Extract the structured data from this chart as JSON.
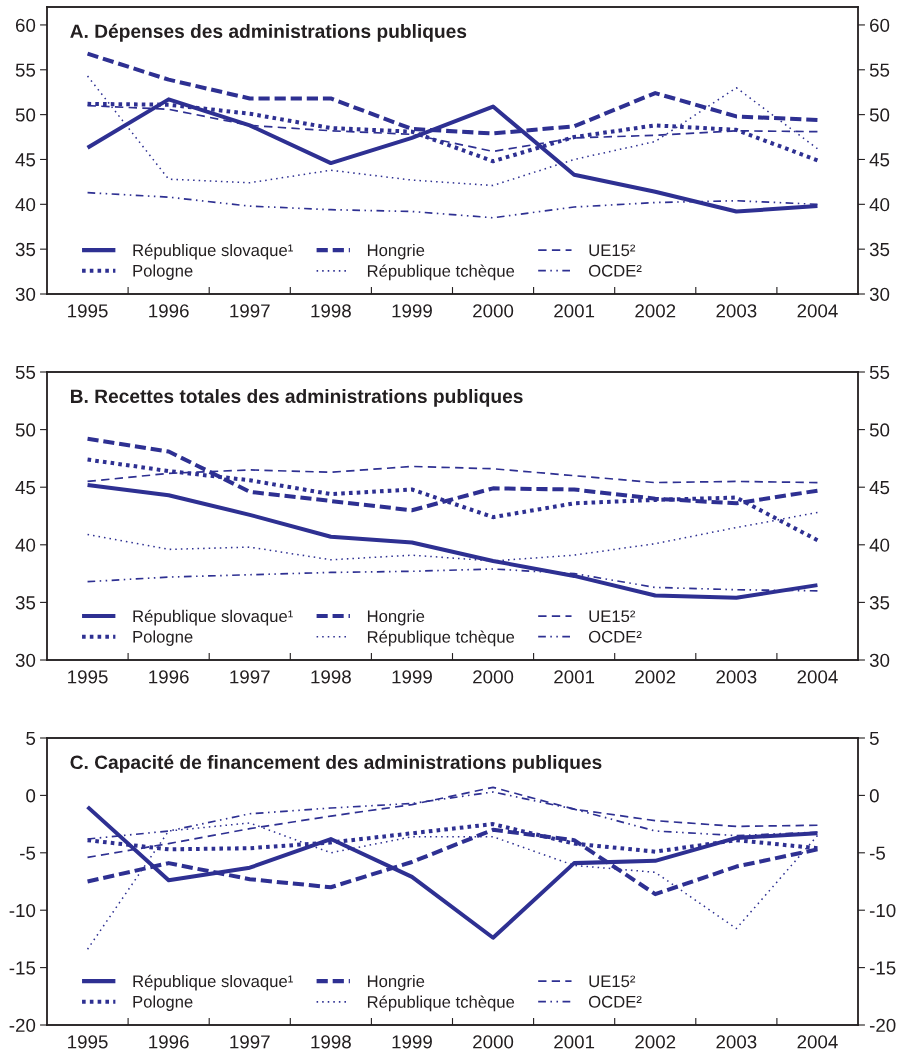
{
  "chart_data": [
    {
      "type": "line",
      "title": "A. Dépenses des administrations publiques",
      "categories": [
        "1995",
        "1996",
        "1997",
        "1998",
        "1999",
        "2000",
        "2001",
        "2002",
        "2003",
        "2004"
      ],
      "ylim": [
        30,
        62
      ],
      "yticks": [
        30,
        35,
        40,
        45,
        50,
        55,
        60
      ],
      "y2lim": [
        30,
        62
      ],
      "y2ticks": [
        30,
        35,
        40,
        45,
        50,
        55,
        60
      ],
      "legend": "bottom left",
      "series": [
        {
          "name": "République slovaque¹",
          "color": "#2e3092",
          "line_style": "solid",
          "values": [
            46.3,
            51.7,
            48.8,
            44.6,
            47.4,
            50.9,
            43.3,
            41.4,
            39.2,
            39.8
          ]
        },
        {
          "name": "Pologne",
          "color": "#2e3092",
          "line_style": "dotted",
          "values": [
            51.2,
            51.1,
            50.1,
            48.5,
            48.1,
            44.8,
            47.5,
            48.8,
            48.3,
            44.9
          ]
        },
        {
          "name": "Hongrie",
          "color": "#2e3092",
          "line_style": "dashed",
          "values": [
            56.8,
            53.9,
            51.8,
            51.8,
            48.4,
            47.9,
            48.7,
            52.4,
            49.8,
            49.4
          ]
        },
        {
          "name": "République tchèque",
          "color": "#2e3092",
          "line_style": "dotted",
          "values": [
            54.3,
            42.8,
            42.4,
            43.8,
            42.7,
            42.1,
            45.0,
            47.0,
            53.0,
            46.2
          ]
        },
        {
          "name": "UE15²",
          "color": "#2e3092",
          "line_style": "dashed",
          "values": [
            51.0,
            50.6,
            48.8,
            48.2,
            47.8,
            45.9,
            47.4,
            47.7,
            48.2,
            48.1
          ]
        },
        {
          "name": "OCDE²",
          "color": "#2e3092",
          "line_style": "dashdot",
          "values": [
            41.3,
            40.8,
            39.8,
            39.4,
            39.2,
            38.5,
            39.7,
            40.2,
            40.4,
            40.0
          ]
        }
      ]
    },
    {
      "type": "line",
      "title": "B. Recettes totales des administrations publiques",
      "categories": [
        "1995",
        "1996",
        "1997",
        "1998",
        "1999",
        "2000",
        "2001",
        "2002",
        "2003",
        "2004"
      ],
      "ylim": [
        30,
        55
      ],
      "yticks": [
        30,
        35,
        40,
        45,
        50,
        55
      ],
      "y2lim": [
        30,
        55
      ],
      "y2ticks": [
        30,
        35,
        40,
        45,
        50,
        55
      ],
      "legend": "bottom left",
      "series": [
        {
          "name": "République slovaque¹",
          "color": "#2e3092",
          "line_style": "solid",
          "values": [
            45.2,
            44.3,
            42.6,
            40.7,
            40.2,
            38.6,
            37.3,
            35.6,
            35.4,
            36.5
          ]
        },
        {
          "name": "Pologne",
          "color": "#2e3092",
          "line_style": "dotted",
          "values": [
            47.4,
            46.4,
            45.6,
            44.4,
            44.8,
            42.4,
            43.6,
            43.9,
            44.1,
            40.4
          ]
        },
        {
          "name": "Hongrie",
          "color": "#2e3092",
          "line_style": "dashed",
          "values": [
            49.2,
            48.1,
            44.6,
            43.8,
            43.0,
            44.9,
            44.8,
            44.0,
            43.6,
            44.7
          ]
        },
        {
          "name": "République tchèque",
          "color": "#2e3092",
          "line_style": "dotted",
          "values": [
            40.9,
            39.6,
            39.8,
            38.7,
            39.1,
            38.6,
            39.1,
            40.1,
            41.5,
            42.8
          ]
        },
        {
          "name": "UE15²",
          "color": "#2e3092",
          "line_style": "dashed",
          "values": [
            45.5,
            46.2,
            46.5,
            46.3,
            46.8,
            46.6,
            46.0,
            45.4,
            45.5,
            45.4
          ]
        },
        {
          "name": "OCDE²",
          "color": "#2e3092",
          "line_style": "dashdot",
          "values": [
            36.8,
            37.2,
            37.4,
            37.6,
            37.7,
            37.9,
            37.5,
            36.3,
            36.1,
            36.0
          ]
        }
      ]
    },
    {
      "type": "line",
      "title": "C. Capacité de financement des administrations publiques",
      "categories": [
        "1995",
        "1996",
        "1997",
        "1998",
        "1999",
        "2000",
        "2001",
        "2002",
        "2003",
        "2004"
      ],
      "ylim": [
        -20,
        5
      ],
      "yticks": [
        -20,
        -15,
        -10,
        -5,
        0,
        5
      ],
      "y2lim": [
        -20,
        5
      ],
      "y2ticks": [
        -20,
        -15,
        -10,
        -5,
        0,
        5
      ],
      "legend": "bottom left",
      "series": [
        {
          "name": "République slovaque¹",
          "color": "#2e3092",
          "line_style": "solid",
          "values": [
            -1.0,
            -7.4,
            -6.3,
            -3.8,
            -7.1,
            -12.4,
            -5.9,
            -5.7,
            -3.7,
            -3.3
          ]
        },
        {
          "name": "Pologne",
          "color": "#2e3092",
          "line_style": "dotted",
          "values": [
            -3.9,
            -4.7,
            -4.6,
            -4.1,
            -3.3,
            -2.5,
            -4.2,
            -4.9,
            -3.9,
            -4.6
          ]
        },
        {
          "name": "Hongrie",
          "color": "#2e3092",
          "line_style": "dashed",
          "values": [
            -7.5,
            -5.9,
            -7.3,
            -8.0,
            -5.8,
            -3.0,
            -3.9,
            -8.6,
            -6.2,
            -4.7
          ]
        },
        {
          "name": "République tchèque",
          "color": "#2e3092",
          "line_style": "dotted",
          "values": [
            -13.4,
            -3.1,
            -2.4,
            -5.0,
            -3.6,
            -3.6,
            -6.1,
            -6.7,
            -11.6,
            -3.5
          ]
        },
        {
          "name": "UE15²",
          "color": "#2e3092",
          "line_style": "dashed",
          "values": [
            -5.4,
            -4.2,
            -2.9,
            -1.8,
            -0.8,
            0.7,
            -1.2,
            -2.2,
            -2.7,
            -2.6
          ]
        },
        {
          "name": "OCDE²",
          "color": "#2e3092",
          "line_style": "dashdot",
          "values": [
            -3.8,
            -3.1,
            -1.6,
            -1.1,
            -0.7,
            0.3,
            -1.2,
            -3.1,
            -3.5,
            -3.2
          ]
        }
      ]
    }
  ]
}
